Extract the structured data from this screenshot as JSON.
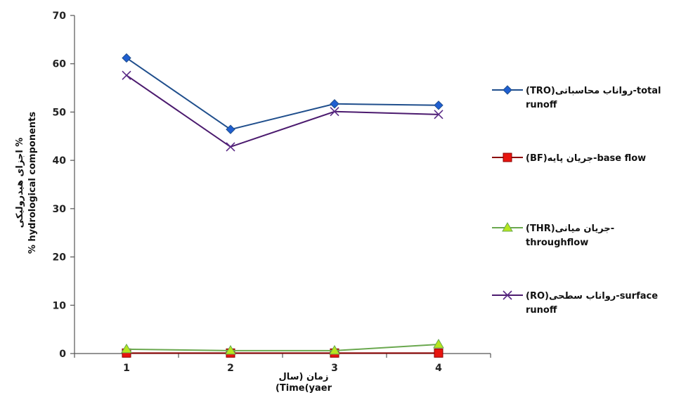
{
  "chart_data": {
    "type": "line",
    "categories": [
      "1",
      "2",
      "3",
      "4"
    ],
    "xlabel_lines": [
      "زمان (سال",
      "(Time(yaer"
    ],
    "ylabel_lines": [
      "اجزای هیدرولیکی %",
      "% hydrological components"
    ],
    "ylim": [
      0,
      70
    ],
    "yticks": [
      "0",
      "10",
      "20",
      "30",
      "40",
      "50",
      "60",
      "70"
    ],
    "grid": false,
    "legend_position": "right",
    "series": [
      {
        "legend_lines": [
          "(TRO)رواناب محاسباتی-total",
          "runoff"
        ],
        "marker": "diamond",
        "color": "#1f4e8c",
        "marker_color": "#1f5fd1",
        "values": [
          61.2,
          46.4,
          51.7,
          51.4
        ]
      },
      {
        "legend_lines": [
          "(BF)جریان پایه-base flow"
        ],
        "marker": "square",
        "color": "#8b0000",
        "marker_color": "#e8150f",
        "values": [
          0.1,
          0.1,
          0.1,
          0.1
        ]
      },
      {
        "legend_lines": [
          "(THR)جریان میانی-",
          "throughflow"
        ],
        "marker": "triangle",
        "color": "#6aa84f",
        "marker_color": "#b6e61e",
        "values": [
          0.9,
          0.6,
          0.6,
          1.9
        ]
      },
      {
        "legend_lines": [
          "(RO)رواناب سطحی-surface",
          "runoff"
        ],
        "marker": "x",
        "color": "#4b1a6e",
        "marker_color": "#5a2a86",
        "values": [
          57.6,
          42.8,
          50.1,
          49.5
        ]
      }
    ]
  }
}
